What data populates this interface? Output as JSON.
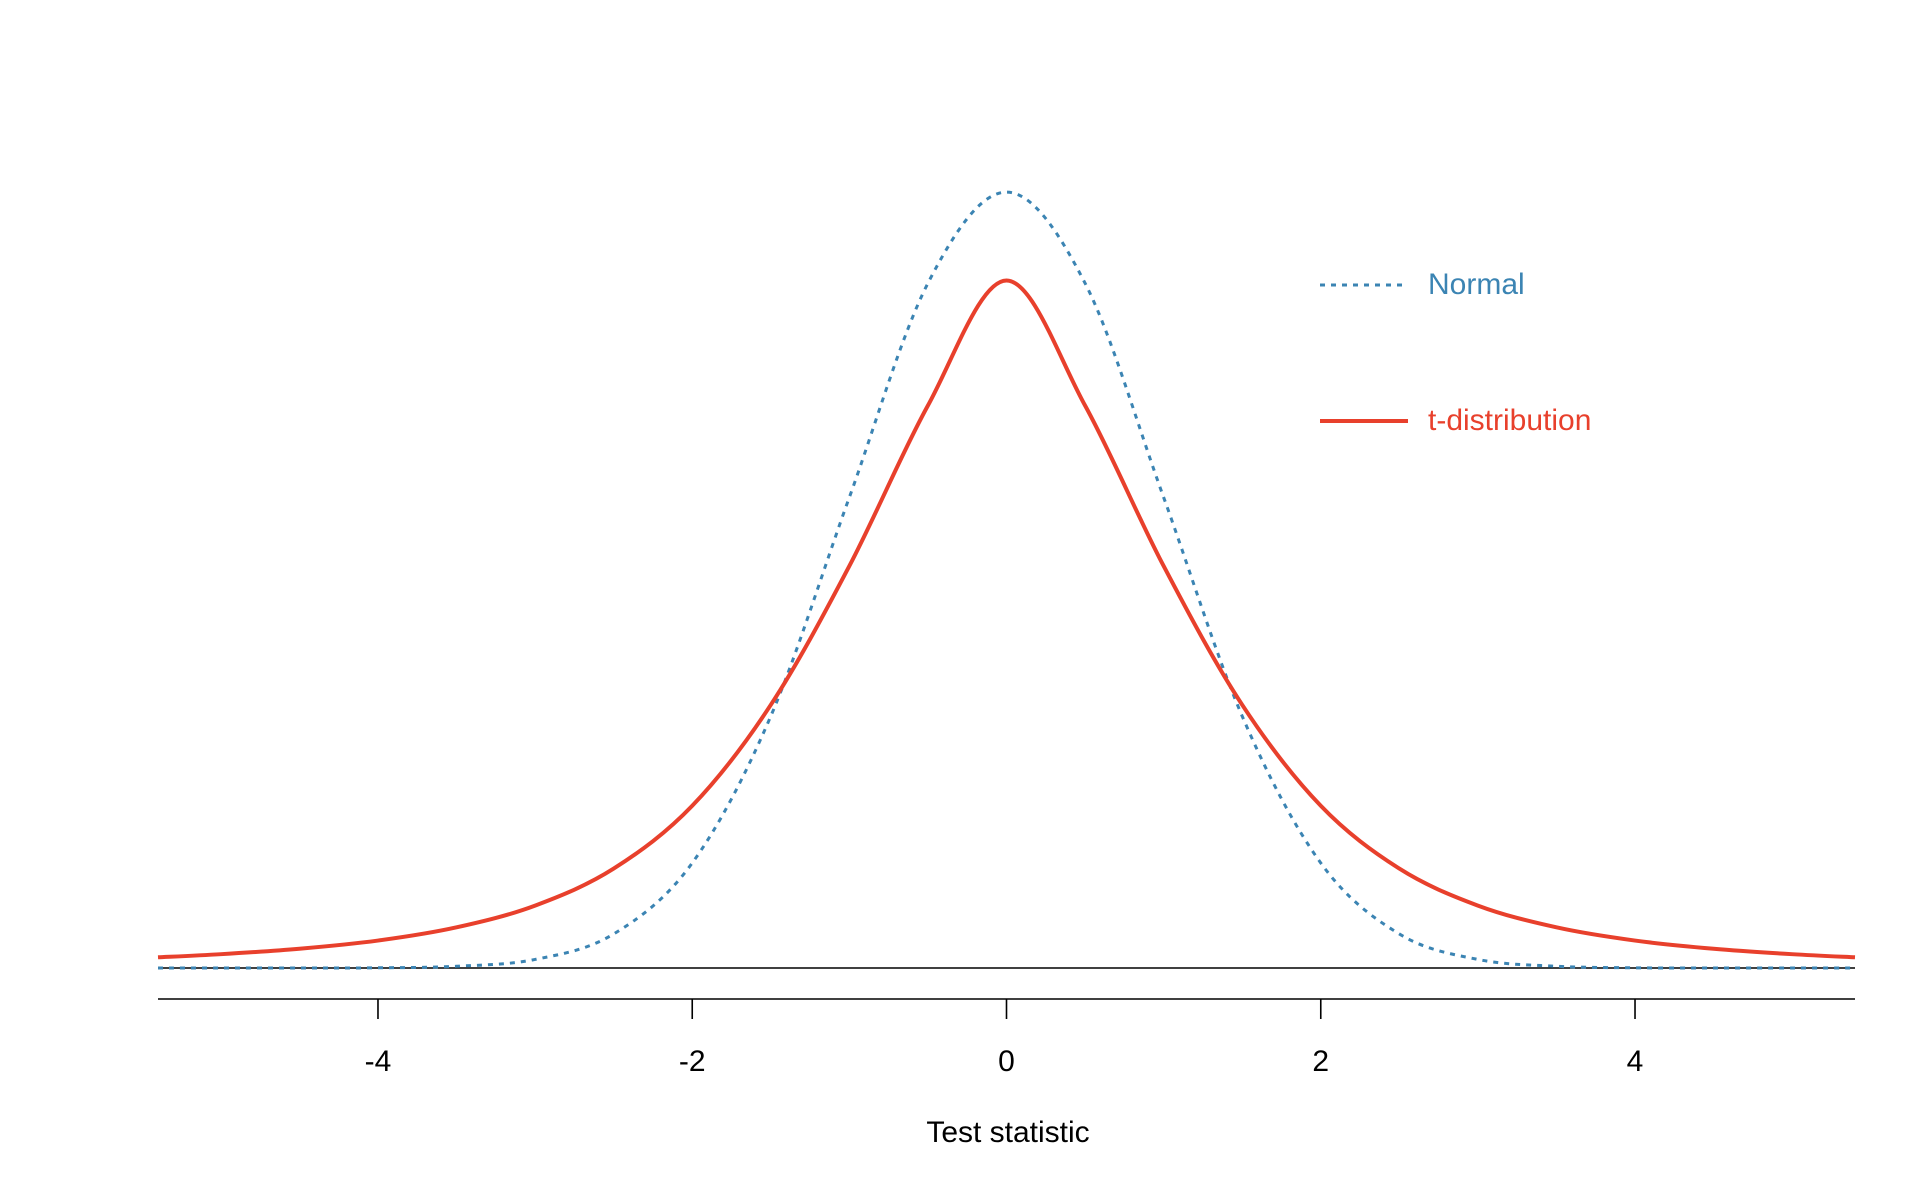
{
  "chart_data": {
    "type": "line",
    "title": "",
    "xlabel": "Test statistic",
    "ylabel": "",
    "xlim": [
      -5.4,
      5.4
    ],
    "ylim": [
      0,
      0.4
    ],
    "xticks": [
      -4,
      -2,
      0,
      2,
      4
    ],
    "xtick_labels": [
      "-4",
      "-2",
      "0",
      "2",
      "4"
    ],
    "grid": false,
    "legend_placement": "top-right",
    "series": [
      {
        "name": "Normal",
        "style": "dotted",
        "color": "#3b84b3",
        "x": [
          -5.4,
          -5,
          -4.5,
          -4,
          -3.5,
          -3,
          -2.5,
          -2,
          -1.5,
          -1,
          -0.5,
          0,
          0.5,
          1,
          1.5,
          2,
          2.5,
          3,
          3.5,
          4,
          4.5,
          5,
          5.4
        ],
        "y": [
          0.0,
          0.0,
          0.0,
          0.0001,
          0.0009,
          0.0044,
          0.0175,
          0.054,
          0.1295,
          0.242,
          0.3521,
          0.3989,
          0.3521,
          0.242,
          0.1295,
          0.054,
          0.0175,
          0.0044,
          0.0009,
          0.0001,
          0.0,
          0.0,
          0.0
        ]
      },
      {
        "name": "t-distribution",
        "style": "solid",
        "color": "#e8402c",
        "x": [
          -5.4,
          -5,
          -4.5,
          -4,
          -3.5,
          -3,
          -2.5,
          -2,
          -1.5,
          -1,
          -0.5,
          0,
          0.5,
          1,
          1.5,
          2,
          2.5,
          3,
          3.5,
          4,
          4.5,
          5,
          5.4
        ],
        "y": [
          0.0055,
          0.0071,
          0.0099,
          0.0141,
          0.0209,
          0.0321,
          0.0511,
          0.0834,
          0.1353,
          0.2067,
          0.2892,
          0.3535,
          0.2892,
          0.2067,
          0.1353,
          0.0834,
          0.0511,
          0.0321,
          0.0209,
          0.0141,
          0.0099,
          0.0071,
          0.0055
        ]
      }
    ]
  }
}
